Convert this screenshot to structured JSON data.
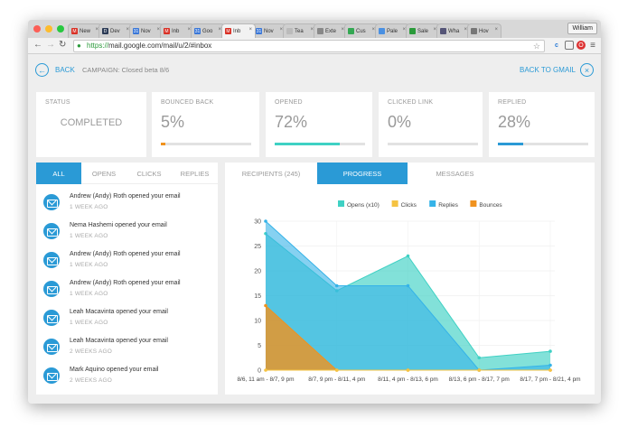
{
  "browser": {
    "tabs": [
      {
        "label": "New",
        "fav": "M",
        "color": "#d93025"
      },
      {
        "label": "Dev",
        "fav": "D",
        "color": "#2b3a55"
      },
      {
        "label": "Nov",
        "fav": "31",
        "color": "#3a77d8"
      },
      {
        "label": "Inb",
        "fav": "M",
        "color": "#d93025"
      },
      {
        "label": "Goo",
        "fav": "31",
        "color": "#3a77d8"
      },
      {
        "label": "Inb",
        "fav": "M",
        "color": "#d93025"
      },
      {
        "label": "Nov",
        "fav": "31",
        "color": "#3a77d8"
      },
      {
        "label": "Tea",
        "fav": "",
        "color": "#bbbbbb"
      },
      {
        "label": "Exte",
        "fav": "",
        "color": "#888888"
      },
      {
        "label": "Cus",
        "fav": "",
        "color": "#34a853"
      },
      {
        "label": "Pale",
        "fav": "",
        "color": "#4a90e2"
      },
      {
        "label": "Sale",
        "fav": "",
        "color": "#2a9a3a"
      },
      {
        "label": "Wha",
        "fav": "",
        "color": "#555577"
      },
      {
        "label": "Hov",
        "fav": "",
        "color": "#777777"
      }
    ],
    "active_tab": 5,
    "user": "William",
    "url_scheme": "https://",
    "url_rest": "mail.google.com/mail/u/2/#inbox"
  },
  "header": {
    "back_label": "BACK",
    "campaign": "CAMPAIGN: Closed beta 8/6",
    "back_to_gmail": "BACK TO GMAIL"
  },
  "stats": [
    {
      "label": "STATUS",
      "value": "COMPLETED",
      "progress": null
    },
    {
      "label": "BOUNCED BACK",
      "value": "5%",
      "progress": 0.05,
      "color": "#f0921e"
    },
    {
      "label": "OPENED",
      "value": "72%",
      "progress": 0.72,
      "color": "#3fd1c4"
    },
    {
      "label": "CLICKED LINK",
      "value": "0%",
      "progress": 0,
      "color": "#2a9ad6"
    },
    {
      "label": "REPLIED",
      "value": "28%",
      "progress": 0.28,
      "color": "#2a9ad6"
    }
  ],
  "activity": {
    "tabs": [
      "ALL",
      "OPENS",
      "CLICKS",
      "REPLIES"
    ],
    "active_tab": 0,
    "items": [
      {
        "text": "Andrew (Andy) Roth opened your email",
        "when": "1 WEEK AGO"
      },
      {
        "text": "Nema Hashemi opened your email",
        "when": "1 WEEK AGO"
      },
      {
        "text": "Andrew (Andy) Roth opened your email",
        "when": "1 WEEK AGO"
      },
      {
        "text": "Andrew (Andy) Roth opened your email",
        "when": "1 WEEK AGO"
      },
      {
        "text": "Leah Macavinta opened your email",
        "when": "1 WEEK AGO"
      },
      {
        "text": "Leah Macavinta opened your email",
        "when": "2 WEEKS AGO"
      },
      {
        "text": "Mark Aquino opened your email",
        "when": "2 WEEKS AGO"
      }
    ]
  },
  "detail": {
    "tabs": [
      "RECIPIENTS (245)",
      "PROGRESS",
      "MESSAGES"
    ],
    "active_tab": 1
  },
  "chart_data": {
    "type": "area",
    "categories": [
      "8/6, 11 am - 8/7, 9 pm",
      "8/7, 9 pm - 8/11, 4 pm",
      "8/11, 4 pm - 8/13, 6 pm",
      "8/13, 6 pm - 8/17, 7 pm",
      "8/17, 7 pm - 8/21, 4 pm"
    ],
    "series": [
      {
        "name": "Opens (x10)",
        "color": "#3fd1c4",
        "values": [
          27.5,
          16,
          23,
          2.5,
          3.8
        ]
      },
      {
        "name": "Clicks",
        "color": "#f5c342",
        "values": [
          0,
          0,
          0,
          0,
          0
        ]
      },
      {
        "name": "Replies",
        "color": "#35b3e8",
        "values": [
          30,
          17,
          17,
          0,
          1
        ]
      },
      {
        "name": "Bounces",
        "color": "#f0921e",
        "values": [
          13,
          0,
          0,
          0,
          0
        ]
      }
    ],
    "ylim": [
      0,
      30
    ],
    "yticks": [
      0,
      5,
      10,
      15,
      20,
      25,
      30
    ],
    "grid": true,
    "legend": "top-center"
  }
}
